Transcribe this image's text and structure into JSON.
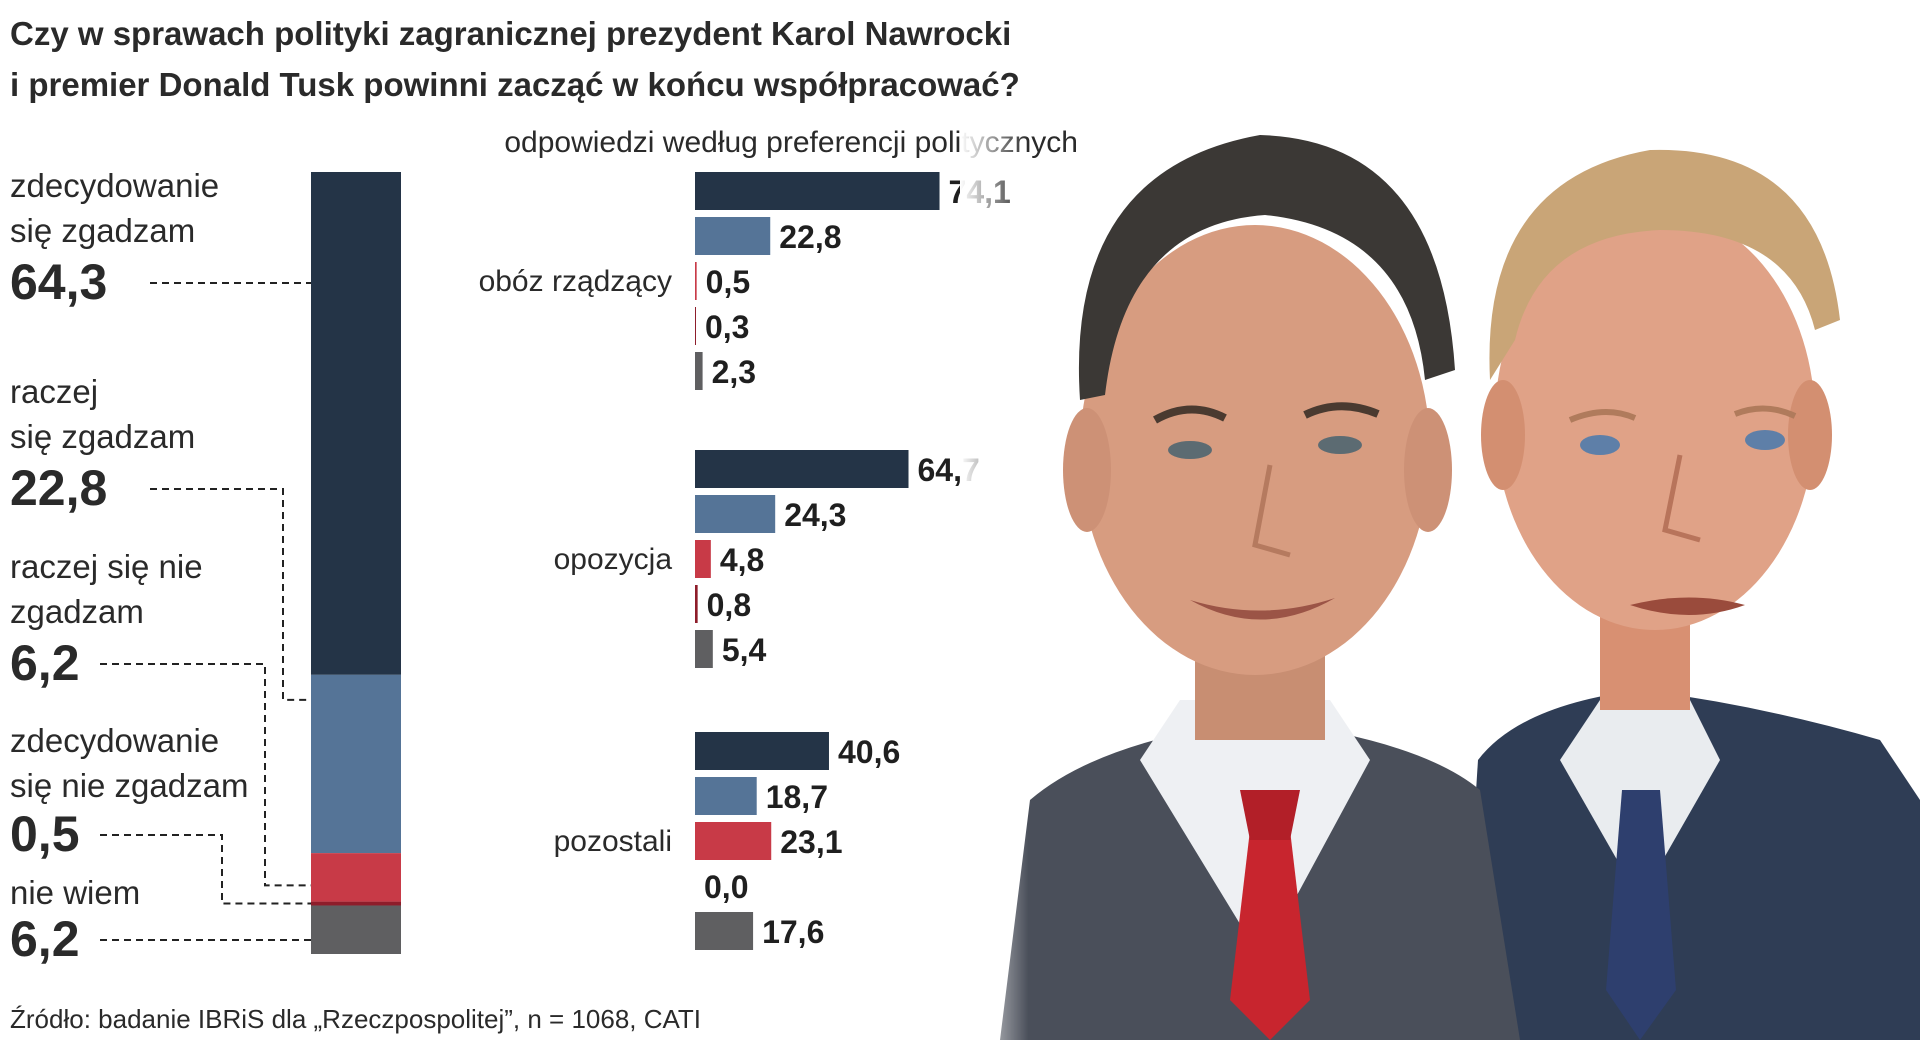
{
  "title_line1": "Czy w sprawach polityki zagranicznej prezydent Karol Nawrocki",
  "title_line2": "i premier Donald Tusk powinni zacząć w końcu współpracować?",
  "subtitle": "odpowiedzi według preferencji politycznych",
  "source": "Źródło: badanie IBRiS dla „Rzeczpospolitej”, n = 1068, CATI",
  "colors": {
    "strongly_agree": "#243447",
    "rather_agree": "#557497",
    "rather_disagree": "#c83a47",
    "strongly_disagree": "#8e1d2a",
    "dont_know": "#5f5f61"
  },
  "chart_data": [
    {
      "type": "bar",
      "stacked": true,
      "orientation": "vertical",
      "categories": [
        {
          "label_lines": [
            "zdecydowanie",
            "się zgadzam"
          ],
          "value_label": "64,3",
          "value": 64.3,
          "color": "#243447"
        },
        {
          "label_lines": [
            "raczej",
            "się zgadzam"
          ],
          "value_label": "22,8",
          "value": 22.8,
          "color": "#557497"
        },
        {
          "label_lines": [
            "raczej się nie",
            "zgadzam"
          ],
          "value_label": "6,2",
          "value": 6.2,
          "color": "#c83a47"
        },
        {
          "label_lines": [
            "zdecydowanie",
            "się nie zgadzam"
          ],
          "value_label": "0,5",
          "value": 0.5,
          "color": "#8e1d2a"
        },
        {
          "label_lines": [
            "nie wiem"
          ],
          "value_label": "6,2",
          "value": 6.2,
          "color": "#5f5f61"
        }
      ]
    },
    {
      "type": "bar",
      "orientation": "horizontal",
      "groups": [
        {
          "name": "obóz rządzący",
          "values": [
            74.1,
            22.8,
            0.5,
            0.3,
            2.3
          ],
          "value_labels": [
            "74,1",
            "22,8",
            "0,5",
            "0,3",
            "2,3"
          ]
        },
        {
          "name": "opozycja",
          "values": [
            64.7,
            24.3,
            4.8,
            0.8,
            5.4
          ],
          "value_labels": [
            "64,7",
            "24,3",
            "4,8",
            "0,8",
            "5,4"
          ]
        },
        {
          "name": "pozostali",
          "values": [
            40.6,
            18.7,
            23.1,
            0.0,
            17.6
          ],
          "value_labels": [
            "40,6",
            "18,7",
            "23,1",
            "0,0",
            "17,6"
          ]
        }
      ],
      "bar_colors": [
        "#243447",
        "#557497",
        "#c83a47",
        "#8e1d2a",
        "#5f5f61"
      ]
    }
  ]
}
